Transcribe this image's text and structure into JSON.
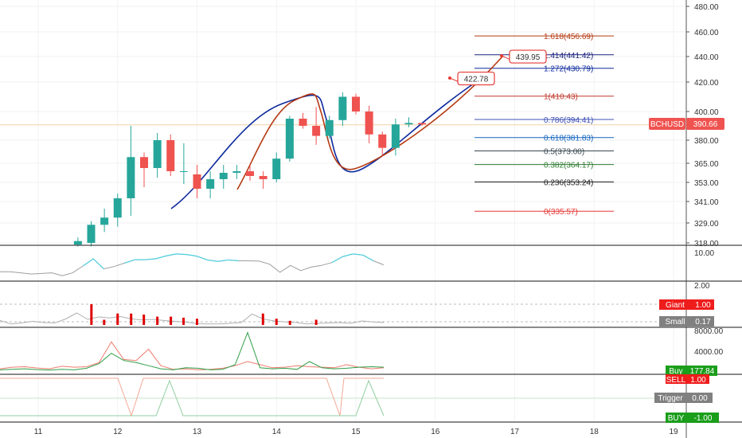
{
  "symbol": "BCHUSD",
  "last_price": "390.66",
  "colors": {
    "up": "#26a69a",
    "down": "#ef5350",
    "arc_blue": "#0d2a9e",
    "arc_red": "#b53a12",
    "callout": "#e53935",
    "price_line": "#f2d3a7",
    "pane_border": "#444444",
    "grid": "#f2f2f2"
  },
  "x_axis": {
    "labels": [
      "11",
      "12",
      "13",
      "14",
      "15",
      "16",
      "17",
      "18",
      "19"
    ],
    "bar_spacing_per_day": 6
  },
  "y_axis": {
    "labels": [
      "480.00",
      "460.00",
      "440.00",
      "420.00",
      "400.00",
      "380.00",
      "365.00",
      "353.00",
      "341.00",
      "329.00",
      "318.00"
    ],
    "ylim": [
      316,
      486
    ]
  },
  "chart_data": {
    "type": "candlestick",
    "start_day": 11.5,
    "bars_per_day": 6,
    "ohlc": [
      [
        317,
        321,
        316,
        319
      ],
      [
        318,
        330,
        316,
        328
      ],
      [
        328,
        337,
        324,
        332
      ],
      [
        332,
        346,
        327,
        343
      ],
      [
        343,
        390,
        333,
        369
      ],
      [
        369,
        372,
        350,
        362
      ],
      [
        362,
        385,
        356,
        380
      ],
      [
        380,
        384,
        357,
        360
      ],
      [
        360,
        378,
        352,
        360
      ],
      [
        358,
        364,
        343,
        349
      ],
      [
        349,
        360,
        343,
        355
      ],
      [
        355,
        364,
        349,
        359
      ],
      [
        359,
        364,
        355,
        360
      ],
      [
        360,
        364,
        354,
        357
      ],
      [
        357,
        360,
        349,
        355
      ],
      [
        355,
        372,
        353,
        368
      ],
      [
        368,
        397,
        366,
        395
      ],
      [
        395,
        399,
        388,
        390
      ],
      [
        390,
        403,
        377,
        383
      ],
      [
        383,
        397,
        381,
        394
      ],
      [
        394,
        413,
        390,
        410
      ],
      [
        410,
        412,
        398,
        400
      ],
      [
        400,
        404,
        378,
        384
      ],
      [
        384,
        386,
        370,
        375
      ],
      [
        375,
        395,
        370,
        391
      ],
      [
        391,
        396,
        389,
        392
      ],
      [
        392,
        392,
        390,
        391
      ]
    ]
  },
  "fib_levels": [
    {
      "label": "1.618(456.69)",
      "value": 456.69,
      "color": "#b53a12"
    },
    {
      "label": "1.414(441.42)",
      "value": 441.42,
      "color": "#1a237e"
    },
    {
      "label": "1.272(430.79)",
      "value": 430.79,
      "color": "#0d2a9e"
    },
    {
      "label": "1(410.43)",
      "value": 410.43,
      "color": "#c0392b"
    },
    {
      "label": "0.786(394.41)",
      "value": 394.41,
      "color": "#3f51b5"
    },
    {
      "label": "0.618(381.83)",
      "value": 381.83,
      "color": "#1565c0"
    },
    {
      "label": "0.5(373.00)",
      "value": 373.0,
      "color": "#37474f"
    },
    {
      "label": "0.382(364.17)",
      "value": 364.17,
      "color": "#2e7d32"
    },
    {
      "label": "0.236(353.24)",
      "value": 353.24,
      "color": "#212121"
    },
    {
      "label": "0(335.57)",
      "value": 335.57,
      "color": "#e53935"
    }
  ],
  "callouts": [
    {
      "text": "439.95",
      "value": 439.95
    },
    {
      "text": "422.78",
      "value": 422.78
    }
  ],
  "panes": {
    "osc1": {
      "label": "10.00",
      "values": [
        3,
        3,
        2.6,
        2.2,
        2.4,
        2.6,
        1.6,
        2.6,
        5,
        7.5,
        4,
        4.8,
        6,
        7.2,
        7.2,
        7.5,
        8.5,
        9.2,
        9,
        8.4,
        7.1,
        6.6,
        7.1,
        6.8,
        6.8,
        6.7,
        5.6,
        2.8,
        5.2,
        3.4,
        4.6,
        5.2,
        6.2,
        8.2,
        9.2,
        8.8,
        6.8,
        5.4
      ]
    },
    "osc2": {
      "top_label": "2.00",
      "giant_label": "Giant",
      "giant_value": "1.00",
      "small_label": "Small",
      "small_value": "0.17",
      "line": [
        0.22,
        0.05,
        0.1,
        0.18,
        0.12,
        0.1,
        0.3,
        0.6,
        0.28,
        0.4,
        0.35,
        0.42,
        0.3,
        0.25,
        0.28,
        0.22,
        0.18,
        0.14,
        0.06,
        0.05,
        0.05,
        0.08,
        0.12,
        0.55,
        0.3,
        0.2,
        0.15,
        0.12,
        0.05,
        0.08,
        0.1,
        0.12,
        0.08,
        0.2,
        0.15,
        0.12
      ],
      "bars": [
        [
          11.67,
          1.0
        ],
        [
          11.83,
          0.25
        ],
        [
          12.0,
          0.55
        ],
        [
          12.17,
          0.55
        ],
        [
          12.33,
          0.5
        ],
        [
          12.5,
          0.4
        ],
        [
          12.67,
          0.4
        ],
        [
          12.83,
          0.35
        ],
        [
          13.0,
          0.3
        ],
        [
          13.83,
          0.55
        ],
        [
          14.0,
          0.3
        ],
        [
          14.17,
          0.2
        ],
        [
          14.5,
          0.25
        ]
      ]
    },
    "volume": {
      "top_label": "8000.00",
      "mid_label": "4000.00",
      "buy_label": "Buy",
      "buy_value": "177.84",
      "green": [
        200,
        250,
        300,
        220,
        180,
        250,
        200,
        350,
        800,
        1800,
        1100,
        900,
        600,
        300,
        200,
        400,
        350,
        200,
        250,
        700,
        3800,
        400,
        300,
        350,
        250,
        1000,
        400,
        300,
        350,
        450,
        500,
        450
      ],
      "red": [
        300,
        450,
        500,
        380,
        300,
        550,
        450,
        500,
        900,
        2900,
        1200,
        1100,
        2200,
        600,
        250,
        300,
        200,
        250,
        350,
        600,
        1000,
        700,
        400,
        450,
        600,
        500,
        450,
        400,
        700,
        450,
        300,
        400
      ]
    },
    "signal": {
      "sell_label": "SELL",
      "sell_value": "1.00",
      "trigger_label": "Trigger",
      "trigger_value": "0.00",
      "buy_label": "BUY",
      "buy_value": "-1.00"
    }
  }
}
